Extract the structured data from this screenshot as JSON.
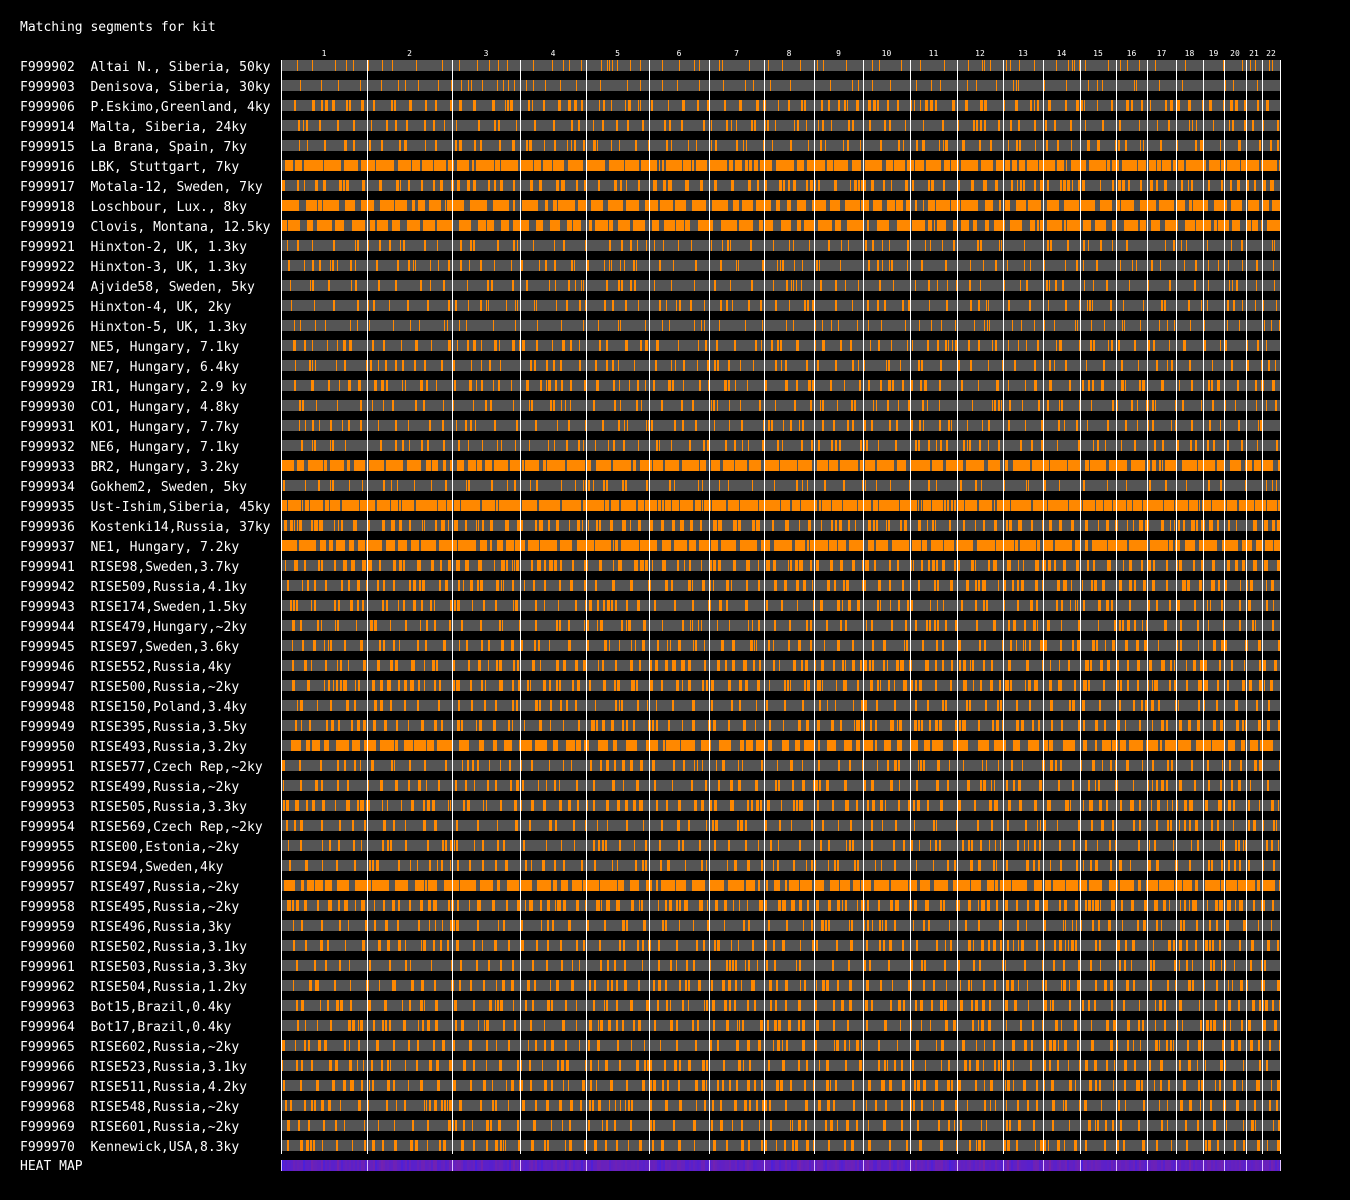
{
  "title": "Matching segments for kit",
  "heatmap_label": "HEAT MAP",
  "colors": {
    "background": "#000000",
    "no_match": "#555555",
    "match": "#ff8800",
    "divider": "#ffffff",
    "heat_low": "#2a1cff",
    "heat_high": "#a0207a"
  },
  "chart_data": {
    "type": "heatmap",
    "title": "Matching segments for kit",
    "chromosomes": [
      "1",
      "2",
      "3",
      "4",
      "5",
      "6",
      "7",
      "8",
      "9",
      "10",
      "11",
      "12",
      "13",
      "14",
      "15",
      "16",
      "17",
      "18",
      "19",
      "20",
      "21",
      "22"
    ],
    "rows": [
      {
        "kit": "F999902",
        "label": "Altai N., Siberia, 50ky",
        "match_density": 0.06
      },
      {
        "kit": "F999903",
        "label": "Denisova, Siberia, 30ky",
        "match_density": 0.03
      },
      {
        "kit": "F999906",
        "label": "P.Eskimo,Greenland, 4ky",
        "match_density": 0.4
      },
      {
        "kit": "F999914",
        "label": "Malta, Siberia, 24ky",
        "match_density": 0.25
      },
      {
        "kit": "F999915",
        "label": "La Brana, Spain, 7ky",
        "match_density": 0.3
      },
      {
        "kit": "F999916",
        "label": "LBK, Stuttgart, 7ky",
        "match_density": 0.85
      },
      {
        "kit": "F999917",
        "label": "Motala-12, Sweden, 7ky",
        "match_density": 0.45
      },
      {
        "kit": "F999918",
        "label": "Loschbour, Lux., 8ky",
        "match_density": 0.75
      },
      {
        "kit": "F999919",
        "label": "Clovis, Montana, 12.5ky",
        "match_density": 0.7
      },
      {
        "kit": "F999921",
        "label": "Hinxton-2, UK, 1.3ky",
        "match_density": 0.15
      },
      {
        "kit": "F999922",
        "label": "Hinxton-3, UK, 1.3ky",
        "match_density": 0.15
      },
      {
        "kit": "F999924",
        "label": "Ajvide58, Sweden, 5ky",
        "match_density": 0.15
      },
      {
        "kit": "F999925",
        "label": "Hinxton-4, UK, 2ky",
        "match_density": 0.2
      },
      {
        "kit": "F999926",
        "label": "Hinxton-5, UK, 1.3ky",
        "match_density": 0.08
      },
      {
        "kit": "F999927",
        "label": "NE5, Hungary, 7.1ky",
        "match_density": 0.3
      },
      {
        "kit": "F999928",
        "label": "NE7, Hungary, 6.4ky",
        "match_density": 0.25
      },
      {
        "kit": "F999929",
        "label": "IR1, Hungary, 2.9 ky",
        "match_density": 0.35
      },
      {
        "kit": "F999930",
        "label": "CO1, Hungary, 4.8ky",
        "match_density": 0.2
      },
      {
        "kit": "F999931",
        "label": "KO1, Hungary, 7.7ky",
        "match_density": 0.25
      },
      {
        "kit": "F999932",
        "label": "NE6, Hungary, 7.1ky",
        "match_density": 0.25
      },
      {
        "kit": "F999933",
        "label": "BR2, Hungary, 3.2ky",
        "match_density": 0.8
      },
      {
        "kit": "F999934",
        "label": "Gokhem2, Sweden, 5ky",
        "match_density": 0.15
      },
      {
        "kit": "F999935",
        "label": "Ust-Ishim,Siberia, 45ky",
        "match_density": 0.92
      },
      {
        "kit": "F999936",
        "label": "Kostenki14,Russia, 37ky",
        "match_density": 0.55
      },
      {
        "kit": "F999937",
        "label": "NE1, Hungary, 7.2ky",
        "match_density": 0.82
      },
      {
        "kit": "F999941",
        "label": "RISE98,Sweden,3.7ky",
        "match_density": 0.55
      },
      {
        "kit": "F999942",
        "label": "RISE509,Russia,4.1ky",
        "match_density": 0.45
      },
      {
        "kit": "F999943",
        "label": "RISE174,Sweden,1.5ky",
        "match_density": 0.35
      },
      {
        "kit": "F999944",
        "label": "RISE479,Hungary,~2ky",
        "match_density": 0.3
      },
      {
        "kit": "F999945",
        "label": "RISE97,Sweden,3.6ky",
        "match_density": 0.35
      },
      {
        "kit": "F999946",
        "label": "RISE552,Russia,4ky",
        "match_density": 0.45
      },
      {
        "kit": "F999947",
        "label": "RISE500,Russia,~2ky",
        "match_density": 0.5
      },
      {
        "kit": "F999948",
        "label": "RISE150,Poland,3.4ky",
        "match_density": 0.3
      },
      {
        "kit": "F999949",
        "label": "RISE395,Russia,3.5ky",
        "match_density": 0.45
      },
      {
        "kit": "F999950",
        "label": "RISE493,Russia,3.2ky",
        "match_density": 0.65
      },
      {
        "kit": "F999951",
        "label": "RISE577,Czech Rep,~2ky",
        "match_density": 0.3
      },
      {
        "kit": "F999952",
        "label": "RISE499,Russia,~2ky",
        "match_density": 0.35
      },
      {
        "kit": "F999953",
        "label": "RISE505,Russia,3.3ky",
        "match_density": 0.5
      },
      {
        "kit": "F999954",
        "label": "RISE569,Czech Rep,~2ky",
        "match_density": 0.3
      },
      {
        "kit": "F999955",
        "label": "RISE00,Estonia,~2ky",
        "match_density": 0.25
      },
      {
        "kit": "F999956",
        "label": "RISE94,Sweden,4ky",
        "match_density": 0.3
      },
      {
        "kit": "F999957",
        "label": "RISE497,Russia,~2ky",
        "match_density": 0.75
      },
      {
        "kit": "F999958",
        "label": "RISE495,Russia,~2ky",
        "match_density": 0.6
      },
      {
        "kit": "F999959",
        "label": "RISE496,Russia,3ky",
        "match_density": 0.3
      },
      {
        "kit": "F999960",
        "label": "RISE502,Russia,3.1ky",
        "match_density": 0.35
      },
      {
        "kit": "F999961",
        "label": "RISE503,Russia,3.3ky",
        "match_density": 0.25
      },
      {
        "kit": "F999962",
        "label": "RISE504,Russia,1.2ky",
        "match_density": 0.45
      },
      {
        "kit": "F999963",
        "label": "Bot15,Brazil,0.4ky",
        "match_density": 0.4
      },
      {
        "kit": "F999964",
        "label": "Bot17,Brazil,0.4ky",
        "match_density": 0.4
      },
      {
        "kit": "F999965",
        "label": "RISE602,Russia,~2ky",
        "match_density": 0.35
      },
      {
        "kit": "F999966",
        "label": "RISE523,Russia,3.1ky",
        "match_density": 0.4
      },
      {
        "kit": "F999967",
        "label": "RISE511,Russia,4.2ky",
        "match_density": 0.45
      },
      {
        "kit": "F999968",
        "label": "RISE548,Russia,~2ky",
        "match_density": 0.35
      },
      {
        "kit": "F999969",
        "label": "RISE601,Russia,~2ky",
        "match_density": 0.3
      },
      {
        "kit": "F999970",
        "label": "Kennewick,USA,8.3ky",
        "match_density": 0.35
      }
    ]
  }
}
